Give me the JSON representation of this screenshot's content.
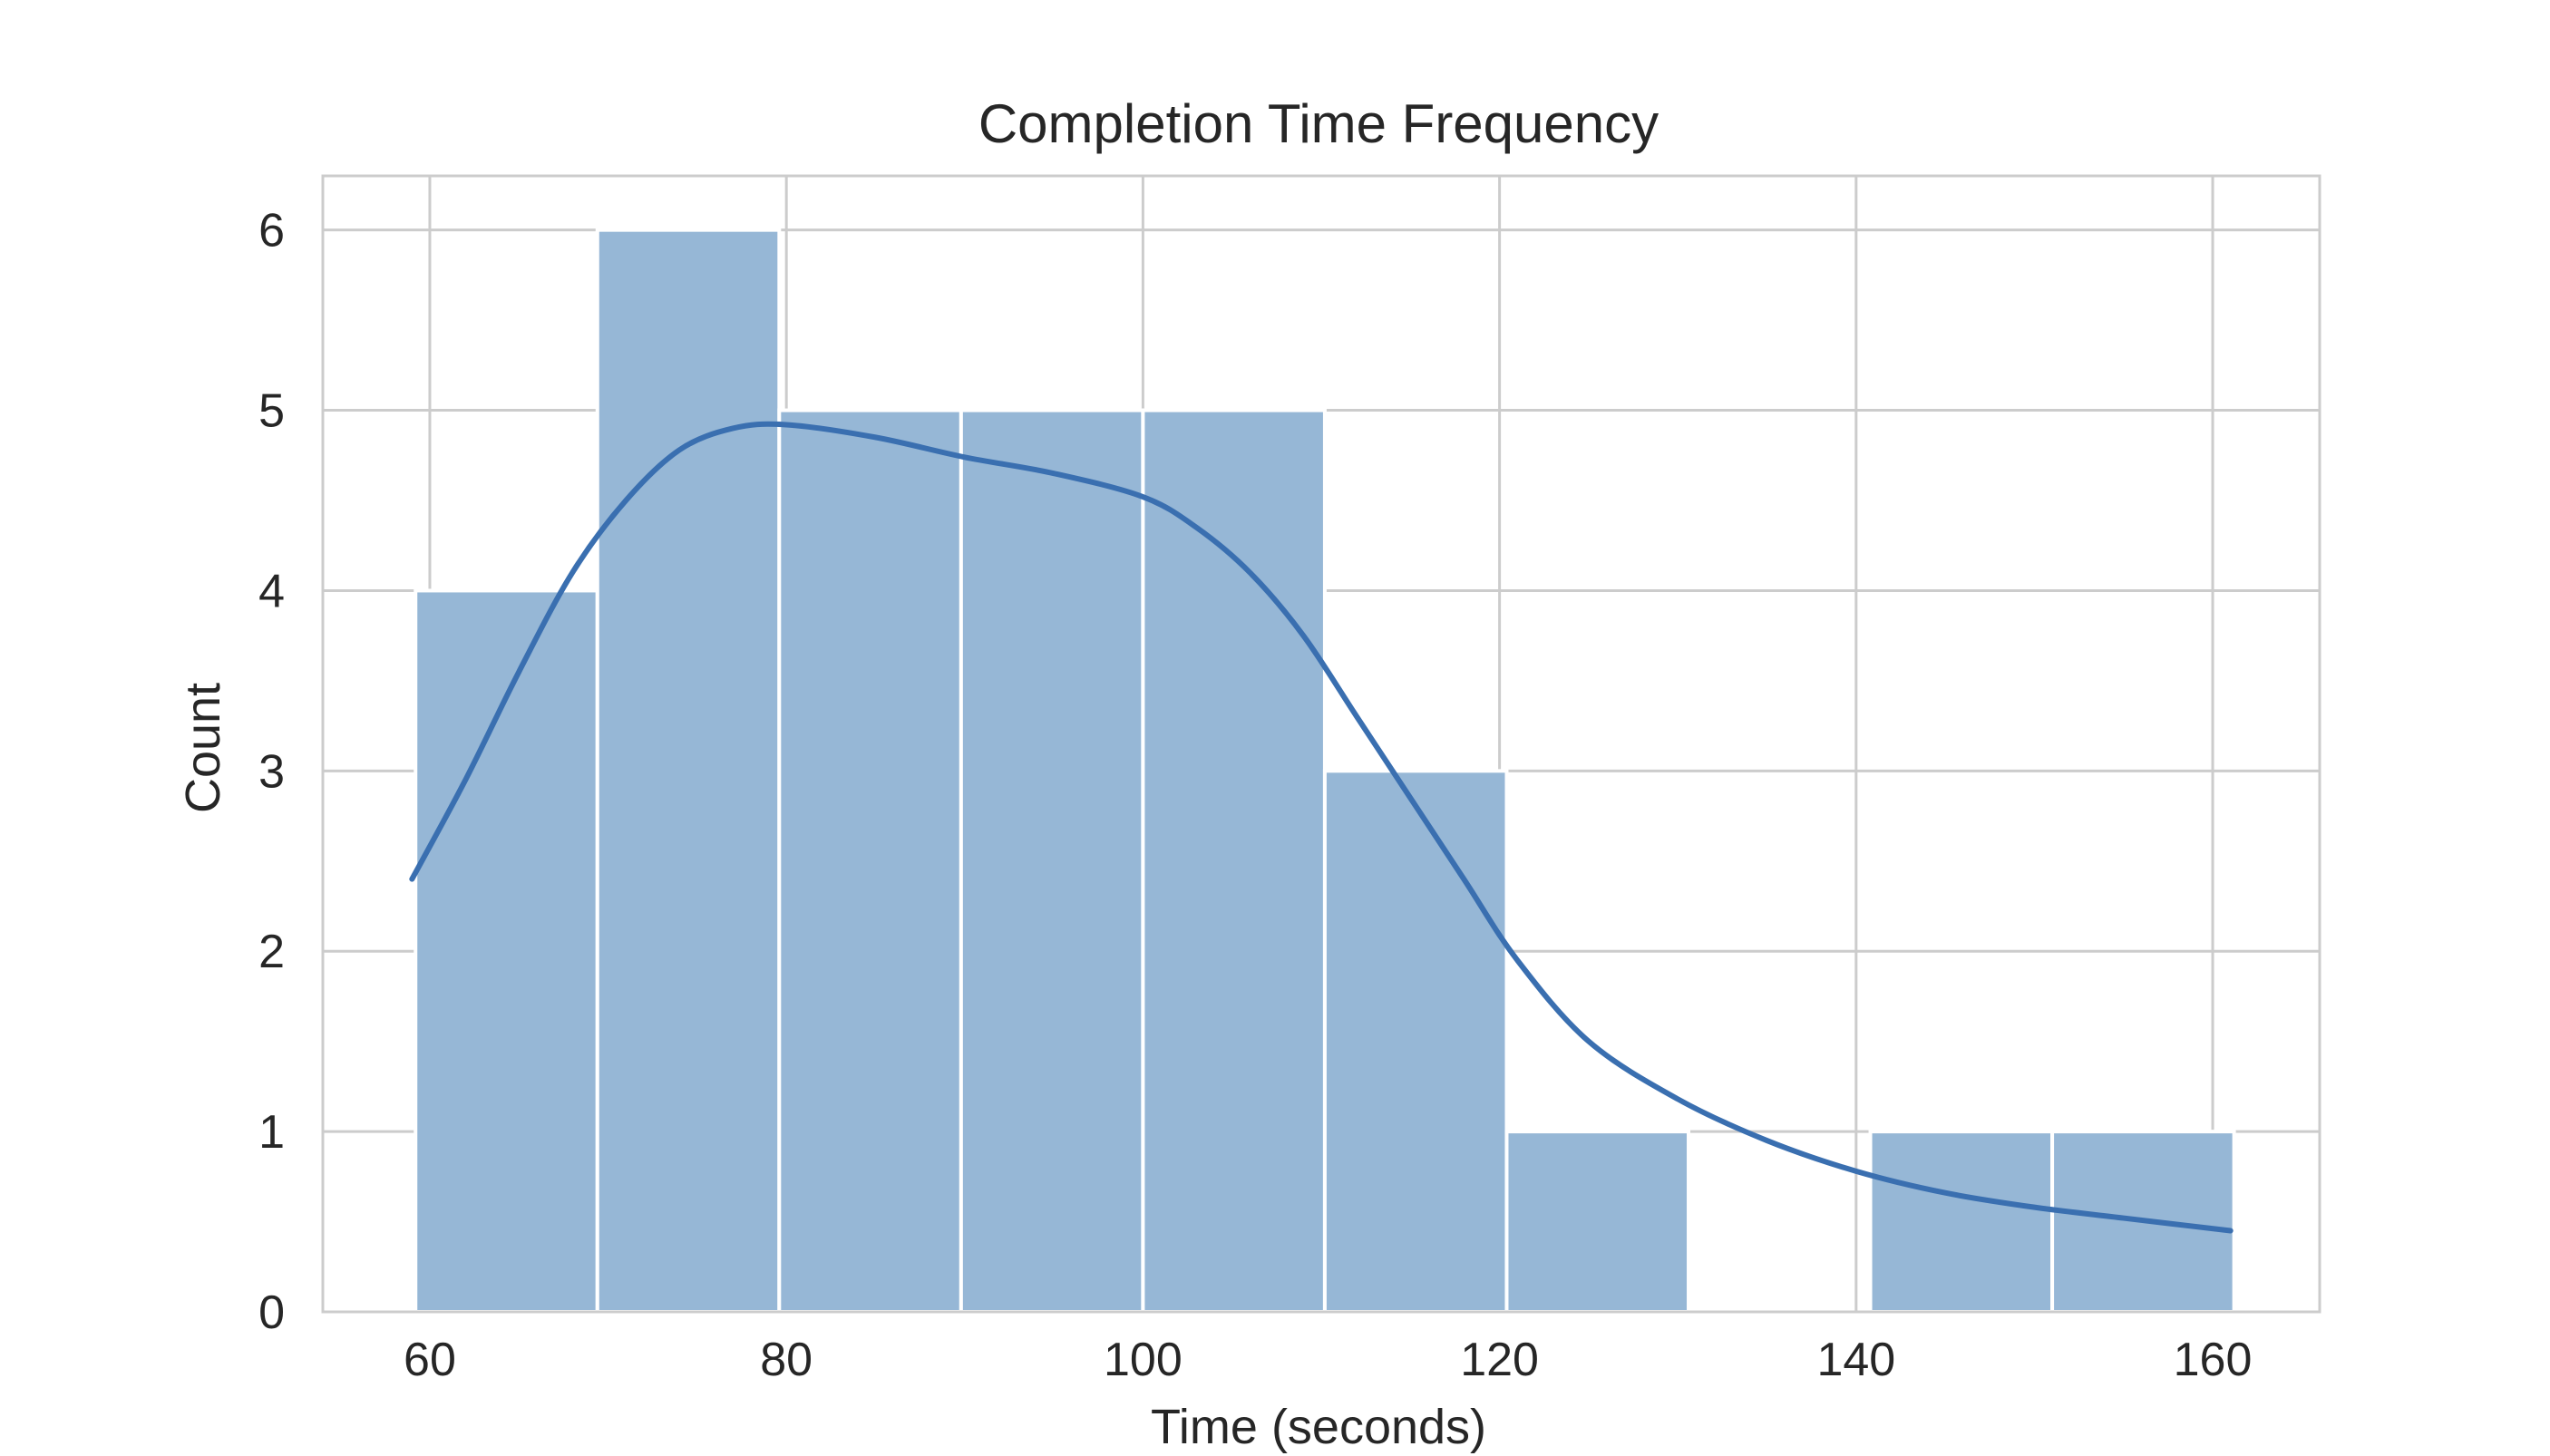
{
  "chart_data": {
    "type": "bar",
    "title": "Completion Time Frequency",
    "xlabel": "Time (seconds)",
    "ylabel": "Count",
    "bins": [
      {
        "x0": 59.2,
        "x1": 69.4,
        "count": 4
      },
      {
        "x0": 69.4,
        "x1": 79.6,
        "count": 6
      },
      {
        "x0": 79.6,
        "x1": 89.8,
        "count": 5
      },
      {
        "x0": 89.8,
        "x1": 100.0,
        "count": 5
      },
      {
        "x0": 100.0,
        "x1": 110.2,
        "count": 5
      },
      {
        "x0": 110.2,
        "x1": 120.4,
        "count": 3
      },
      {
        "x0": 120.4,
        "x1": 130.6,
        "count": 1
      },
      {
        "x0": 130.6,
        "x1": 140.8,
        "count": 0
      },
      {
        "x0": 140.8,
        "x1": 151.0,
        "count": 1
      },
      {
        "x0": 151.0,
        "x1": 161.2,
        "count": 1
      }
    ],
    "kde": {
      "x": [
        59,
        62,
        65,
        68,
        71,
        74,
        77,
        80,
        85,
        90,
        95,
        100,
        103,
        106,
        109,
        112,
        115,
        118,
        121,
        125,
        130,
        135,
        140,
        145,
        150,
        155,
        161
      ],
      "y": [
        2.4,
        2.95,
        3.55,
        4.1,
        4.5,
        4.78,
        4.9,
        4.92,
        4.85,
        4.74,
        4.65,
        4.52,
        4.35,
        4.1,
        3.75,
        3.3,
        2.85,
        2.4,
        1.95,
        1.5,
        1.18,
        0.95,
        0.78,
        0.66,
        0.58,
        0.52,
        0.45
      ]
    },
    "xticks": [
      "60",
      "80",
      "100",
      "120",
      "140",
      "160"
    ],
    "xtick_values": [
      60,
      80,
      100,
      120,
      140,
      160
    ],
    "yticks": [
      "0",
      "1",
      "2",
      "3",
      "4",
      "5",
      "6"
    ],
    "ytick_values": [
      0,
      1,
      2,
      3,
      4,
      5,
      6
    ],
    "xlim": [
      54,
      166
    ],
    "ylim": [
      0,
      6.3
    ],
    "grid": true,
    "colors": {
      "bar_fill": "#96b7d6",
      "bar_edge": "#ffffff",
      "kde_line": "#3a6fb0",
      "grid": "#cccccc",
      "spine": "#cccccc",
      "text": "#262626"
    }
  }
}
